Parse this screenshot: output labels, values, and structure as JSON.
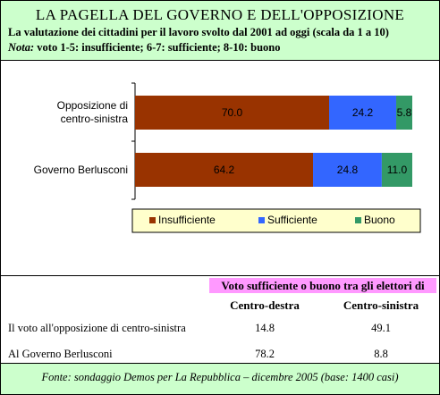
{
  "header": {
    "title": "LA PAGELLA DEL GOVERNO E DELL'OPPOSIZIONE",
    "subtitle": "La valutazione dei cittadini per il lavoro svolto dal 2001 ad oggi (scala da 1 a 10)",
    "note_label": "Nota:",
    "note": "voto 1-5: insufficiente; 6-7: sufficiente; 8-10: buono"
  },
  "chart_data": {
    "type": "stacked-bar-horizontal",
    "categories": [
      "Opposizione di centro-sinistra",
      "Governo Berlusconi"
    ],
    "xlim": [
      0,
      100
    ],
    "series": [
      {
        "name": "Insufficiente",
        "color": "#993300",
        "values": [
          70.0,
          64.2
        ],
        "value_labels": [
          "70.0",
          "64.2"
        ]
      },
      {
        "name": "Sufficiente",
        "color": "#3366ff",
        "values": [
          24.2,
          24.8
        ],
        "value_labels": [
          "24.2",
          "24.8"
        ]
      },
      {
        "name": "Buono",
        "color": "#339966",
        "values": [
          5.8,
          11.0
        ],
        "value_labels": [
          "5.8",
          "11.0"
        ]
      }
    ],
    "legend": "bottom"
  },
  "table": {
    "group_header": "Voto sufficiente o buono tra gli elettori di",
    "columns": [
      "Centro-destra",
      "Centro-sinistra"
    ],
    "rows": [
      {
        "label": "Il voto all'opposizione di centro-sinistra",
        "values": [
          14.8,
          49.1
        ]
      },
      {
        "label": "Al Governo Berlusconi",
        "values": [
          78.2,
          8.8
        ]
      }
    ]
  },
  "footer": {
    "source": "Fonte: sondaggio Demos per La Repubblica – dicembre 2005 (base: 1400 casi)"
  }
}
